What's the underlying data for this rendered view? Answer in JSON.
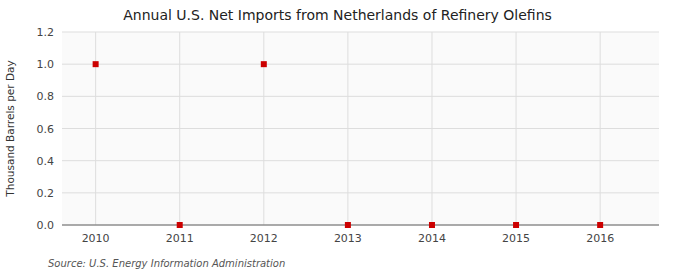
{
  "chart_data": {
    "type": "scatter",
    "title": "Annual U.S. Net Imports from Netherlands of Refinery Olefins",
    "ylabel": "Thousand Barrels per Day",
    "source": "Source: U.S. Energy Information Administration",
    "x": [
      2010,
      2011,
      2012,
      2013,
      2014,
      2015,
      2016
    ],
    "values": [
      1.0,
      0.0,
      1.0,
      0.0,
      0.0,
      0.0,
      0.0
    ],
    "color": "#cc0000",
    "marker": "square",
    "xlim": [
      2009.6,
      2016.7
    ],
    "ylim": [
      0.0,
      1.2
    ],
    "xticks": [
      2010,
      2011,
      2012,
      2013,
      2014,
      2015,
      2016
    ],
    "yticks": [
      {
        "value": 0.0,
        "label": "0.0"
      },
      0.2,
      0.4,
      0.6,
      0.8,
      {
        "value": 1.0,
        "label": "1.0"
      },
      1.2
    ],
    "grid": true
  }
}
